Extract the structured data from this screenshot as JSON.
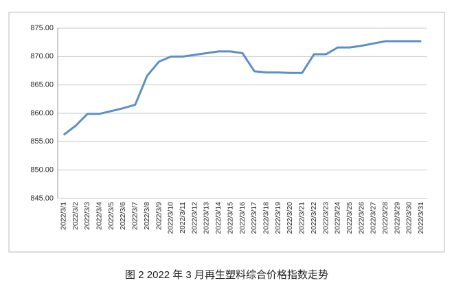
{
  "chart_data": {
    "type": "line",
    "caption": "图 2  2022 年 3 月再生塑料综合价格指数走势",
    "categories": [
      "2022/3/1",
      "2022/3/2",
      "2022/3/3",
      "2022/3/4",
      "2022/3/5",
      "2022/3/6",
      "2022/3/7",
      "2022/3/8",
      "2022/3/9",
      "2022/3/10",
      "2022/3/11",
      "2022/3/12",
      "2022/3/13",
      "2022/3/14",
      "2022/3/15",
      "2022/3/16",
      "2022/3/17",
      "2022/3/18",
      "2022/3/19",
      "2022/3/20",
      "2022/3/21",
      "2022/3/22",
      "2022/3/23",
      "2022/3/24",
      "2022/3/25",
      "2022/3/26",
      "2022/3/27",
      "2022/3/28",
      "2022/3/29",
      "2022/3/30",
      "2022/3/31"
    ],
    "values": [
      856.2,
      857.8,
      859.9,
      859.9,
      860.4,
      860.9,
      861.5,
      866.6,
      869.1,
      870.0,
      870.0,
      870.3,
      870.6,
      870.9,
      870.9,
      870.6,
      867.4,
      867.2,
      867.2,
      867.1,
      867.1,
      870.4,
      870.4,
      871.6,
      871.6,
      871.9,
      872.3,
      872.7,
      872.7,
      872.7,
      872.7
    ],
    "color": "#5b8fc7",
    "ylim": [
      845,
      875
    ],
    "yticks": [
      {
        "value": 845,
        "label": "845.00"
      },
      {
        "value": 850,
        "label": "850.00"
      },
      {
        "value": 855,
        "label": "855.00"
      },
      {
        "value": 860,
        "label": "860.00"
      },
      {
        "value": 865,
        "label": "865.00"
      },
      {
        "value": 870,
        "label": "870.00"
      },
      {
        "value": 875,
        "label": "875.00"
      }
    ],
    "grid": true
  }
}
